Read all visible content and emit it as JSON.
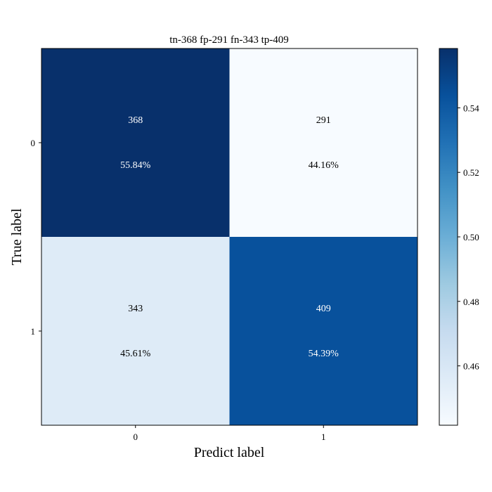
{
  "chart_data": {
    "type": "heatmap",
    "title": "tn-368 fp-291 fn-343 tp-409",
    "xlabel": "Predict label",
    "ylabel": "True label",
    "x_categories": [
      "0",
      "1"
    ],
    "y_categories": [
      "0",
      "1"
    ],
    "counts": [
      [
        368,
        291
      ],
      [
        343,
        409
      ]
    ],
    "percent_labels": [
      [
        "55.84%",
        "44.16%"
      ],
      [
        "45.61%",
        "54.39%"
      ]
    ],
    "values": [
      [
        0.5584,
        0.4416
      ],
      [
        0.4561,
        0.5439
      ]
    ],
    "colormap": "Blues",
    "colorbar": {
      "ticks": [
        0.46,
        0.48,
        0.5,
        0.52,
        0.54
      ],
      "tick_labels": [
        "0.46",
        "0.48",
        "0.50",
        "0.52",
        "0.54"
      ],
      "range": [
        0.4416,
        0.5584
      ]
    },
    "grid": false
  }
}
